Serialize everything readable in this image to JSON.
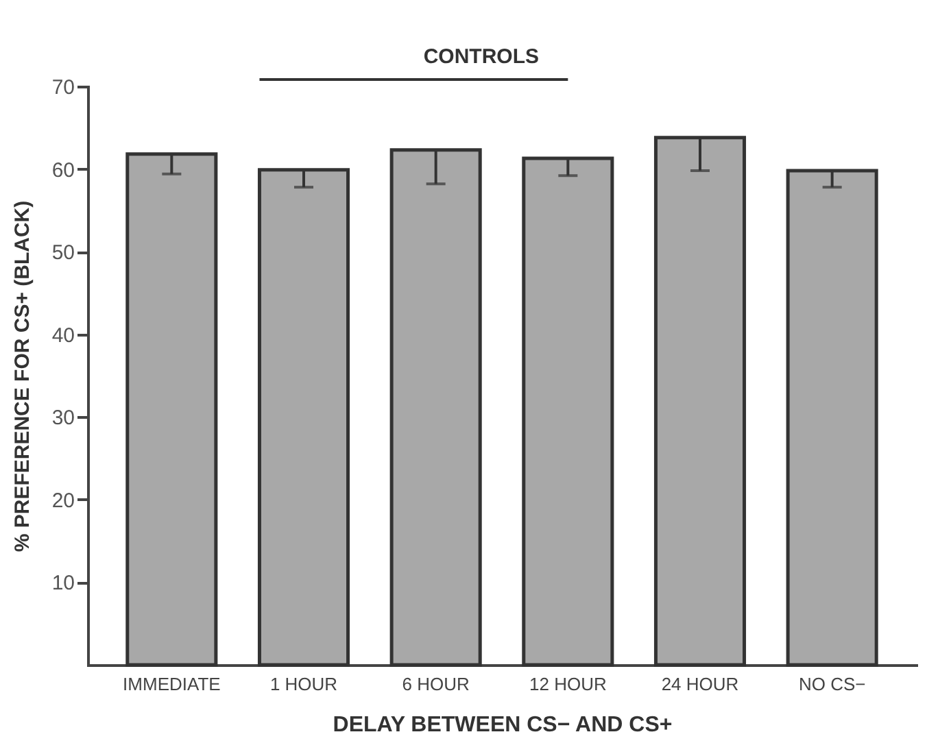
{
  "chart_data": {
    "type": "bar",
    "xlabel": "DELAY BETWEEN CS− AND CS+",
    "ylabel": "% PREFERENCE FOR CS+ (BLACK)",
    "categories": [
      "IMMEDIATE",
      "1 HOUR",
      "6 HOUR",
      "12 HOUR",
      "24 HOUR",
      "NO CS−"
    ],
    "values": [
      61.8,
      59.9,
      62.3,
      61.3,
      63.8,
      59.8
    ],
    "errors": [
      [
        59.4,
        61.8
      ],
      [
        57.8,
        59.9
      ],
      [
        58.2,
        62.3
      ],
      [
        59.2,
        61.3
      ],
      [
        59.8,
        63.8
      ],
      [
        57.8,
        59.8
      ]
    ],
    "color": "#a8a8a8",
    "ylim": [
      0,
      70
    ],
    "yticks": [
      10,
      20,
      30,
      40,
      50,
      60,
      70
    ],
    "grid": false,
    "annotations": [
      "CONTROLS"
    ]
  }
}
